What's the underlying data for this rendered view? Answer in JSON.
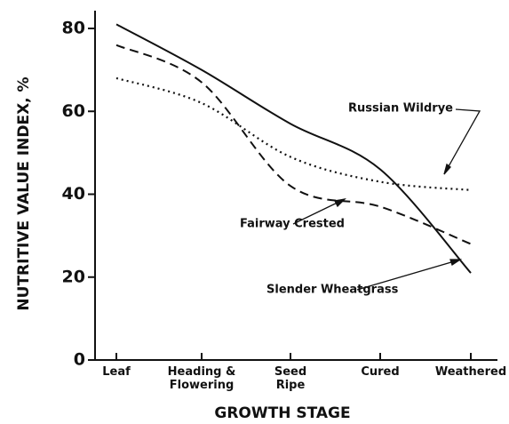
{
  "chart_data": {
    "type": "line",
    "xlabel": "GROWTH STAGE",
    "ylabel": "NUTRITIVE VALUE INDEX, %",
    "categories": [
      "Leaf",
      "Heading &\nFlowering",
      "Seed\nRipe",
      "Cured",
      "Weathered"
    ],
    "ylim": [
      0,
      80
    ],
    "yticks": [
      0,
      20,
      40,
      60,
      80
    ],
    "series": [
      {
        "name": "Slender Wheatgrass",
        "color": "#111111",
        "style": "solid",
        "values": [
          81,
          70,
          57,
          46,
          21
        ]
      },
      {
        "name": "Fairway Crested",
        "color": "#111111",
        "style": "dashed",
        "values": [
          76,
          67,
          42,
          37,
          28
        ]
      },
      {
        "name": "Russian Wildrye",
        "color": "#111111",
        "style": "dotted",
        "values": [
          68,
          62,
          49,
          43,
          41
        ]
      }
    ]
  }
}
